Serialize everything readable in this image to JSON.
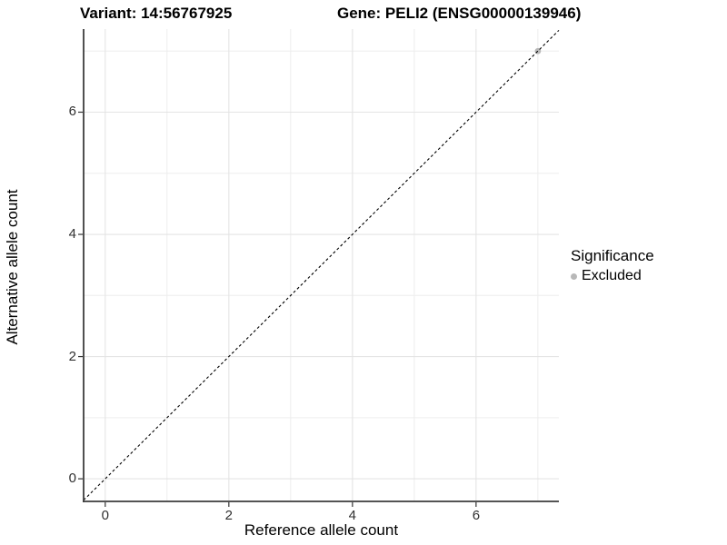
{
  "titles": {
    "left": "Variant: 14:56767925",
    "right": "Gene: PELI2 (ENSG00000139946)"
  },
  "chart_data": {
    "type": "scatter",
    "xlabel": "Reference allele count",
    "ylabel": "Alternative allele count",
    "xlim": [
      -0.35,
      7.34
    ],
    "ylim": [
      -0.37,
      7.36
    ],
    "x_major_ticks": [
      0,
      2,
      4,
      6
    ],
    "y_major_ticks": [
      0,
      2,
      4,
      6
    ],
    "x_minor_gridlines": [
      1,
      3,
      5,
      7
    ],
    "y_minor_gridlines": [
      1,
      3,
      5,
      7
    ],
    "grid_on": true,
    "reference_line": {
      "type": "identity y=x",
      "style": "dashed",
      "color": "#000000"
    },
    "series": [
      {
        "name": "Excluded",
        "color": "#b8b8b8",
        "points": [
          {
            "x": 7,
            "y": 7
          }
        ]
      }
    ],
    "legend": {
      "title": "Significance",
      "position": "right",
      "items": [
        {
          "label": "Excluded",
          "color": "#b8b8b8"
        }
      ]
    }
  },
  "colors": {
    "background": "#ffffff",
    "gridline_major": "#e4e4e4",
    "gridline_minor": "#ededed",
    "axis_line": "#3c3c3c",
    "tick_mark": "#333333",
    "tick_label": "#303030"
  }
}
